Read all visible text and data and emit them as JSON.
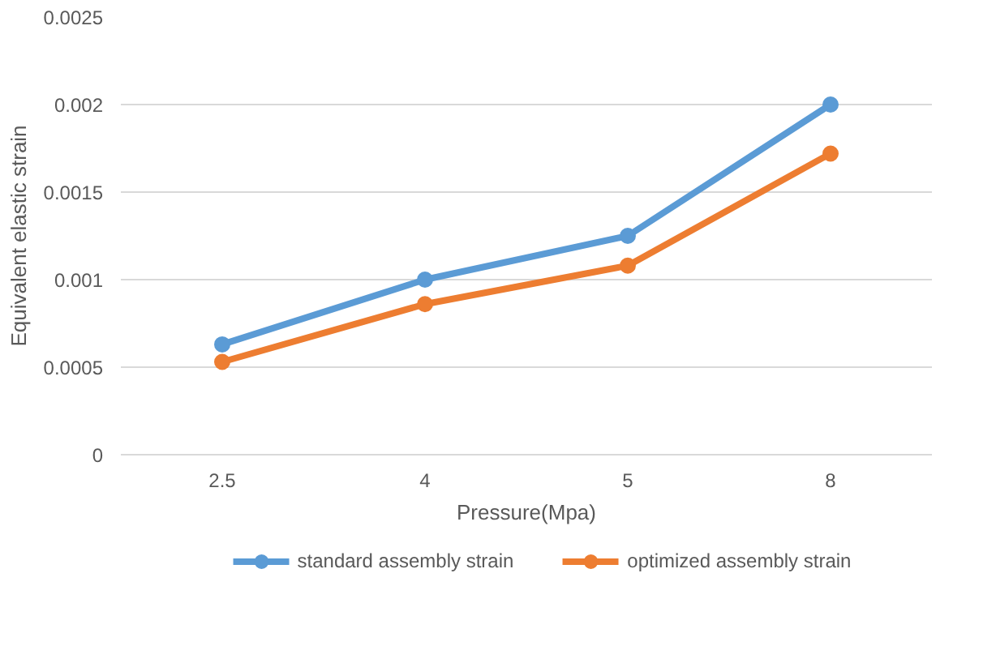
{
  "chart_data": {
    "type": "line",
    "xlabel": "Pressure(Mpa)",
    "ylabel": "Equivalent elastic strain",
    "categories": [
      "2.5",
      "4",
      "5",
      "8"
    ],
    "series": [
      {
        "name": "standard assembly strain",
        "color": "#5b9bd5",
        "values": [
          0.00063,
          0.001,
          0.00125,
          0.002
        ]
      },
      {
        "name": "optimized assembly strain",
        "color": "#ed7d31",
        "values": [
          0.00053,
          0.00086,
          0.00108,
          0.00172
        ]
      }
    ],
    "ylim": [
      0,
      0.0025
    ],
    "yticks": [
      0,
      0.0005,
      0.001,
      0.0015,
      0.002,
      0.0025
    ],
    "grid": "y",
    "legend": "bottom",
    "marker": "circle",
    "line_style": "solid"
  }
}
